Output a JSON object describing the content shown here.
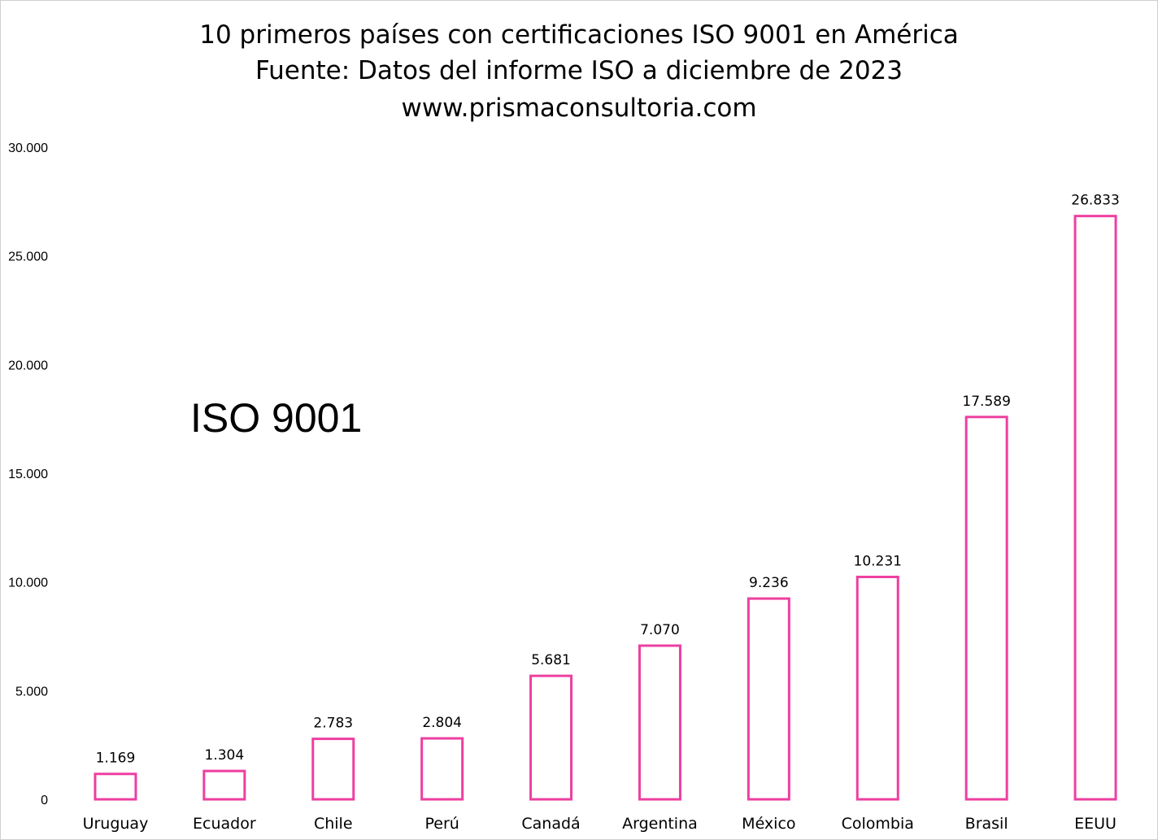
{
  "chart_data": {
    "type": "bar",
    "title": [
      "10 primeros países con certificaciones ISO 9001 en América",
      "Fuente: Datos del informe ISO  a diciembre de 2023",
      "www.prismaconsultoria.com"
    ],
    "annotation": "ISO 9001",
    "categories": [
      "Uruguay",
      "Ecuador",
      "Chile",
      "Perú",
      "Canadá",
      "Argentina",
      "México",
      "Colombia",
      "Brasil",
      "EEUU"
    ],
    "values": [
      1169,
      1304,
      2783,
      2804,
      5681,
      7070,
      9236,
      10231,
      17589,
      26833
    ],
    "data_labels": [
      "1.169",
      "1.304",
      "2.783",
      "2.804",
      "5.681",
      "7.070",
      "9.236",
      "10.231",
      "17.589",
      "26.833"
    ],
    "y_ticks": [
      0,
      5000,
      10000,
      15000,
      20000,
      25000,
      30000
    ],
    "y_tick_labels": [
      "0",
      "5.000",
      "10.000",
      "15.000",
      "20.000",
      "25.000",
      "30.000"
    ],
    "ylim": [
      0,
      30000
    ],
    "xlabel": "",
    "ylabel": "",
    "grid": false,
    "legend": "none",
    "bar_style": "outline",
    "bar_color": "#ee3fa0"
  }
}
